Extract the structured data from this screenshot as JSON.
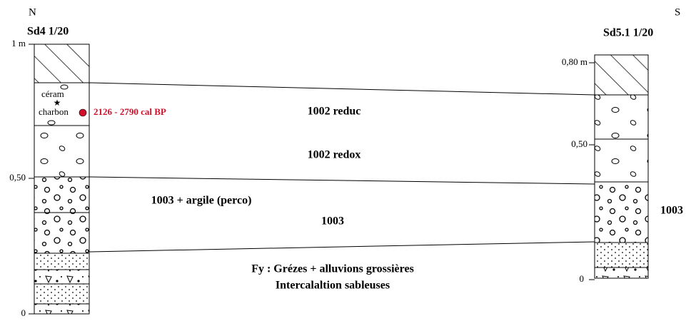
{
  "header": {
    "left": "N",
    "right": "S"
  },
  "columns": [
    {
      "title": "Sd4 1/20",
      "scale": [
        "1 m",
        "0,50",
        "0"
      ]
    },
    {
      "title": "Sd5.1 1/20",
      "scale": [
        "0,80 m",
        "0,50",
        "0"
      ]
    }
  ],
  "annotations": {
    "ceram": "céram",
    "charbon": "charbon",
    "date": "2126 - 2790 cal BP"
  },
  "layers": [
    "1002 reduc",
    "1002 redox",
    "1003 + argile (perco)",
    "1003",
    "1003"
  ],
  "base": [
    "Fy : Grézes + alluvions grossières",
    "Intercalaltion sableuses"
  ]
}
